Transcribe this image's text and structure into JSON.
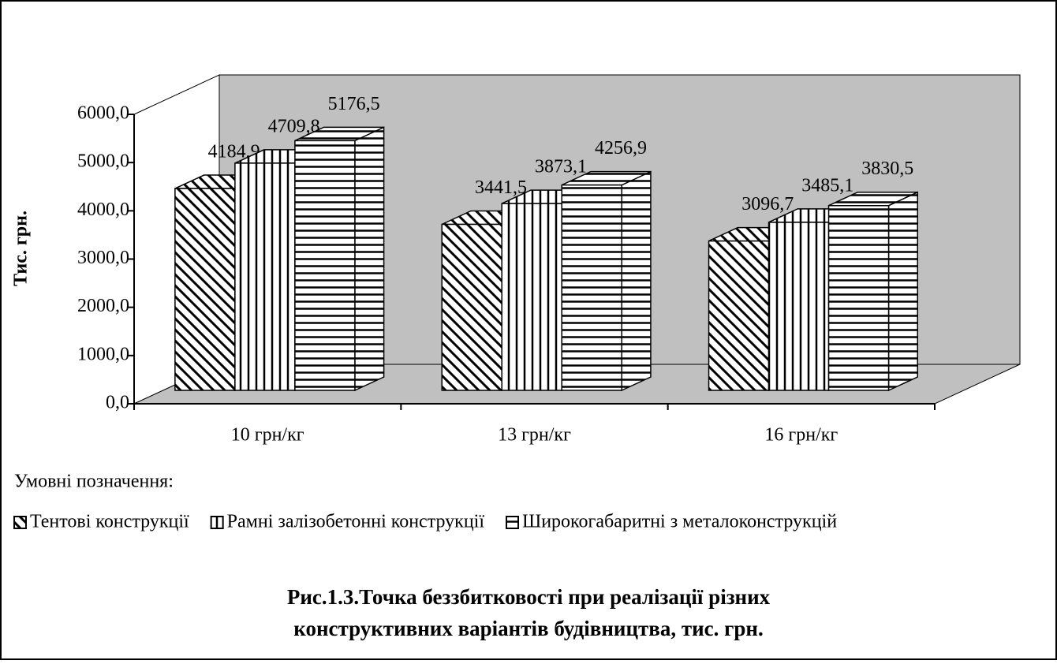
{
  "chart_data": {
    "type": "bar3d",
    "title": [
      "Рис.1.3.Точка беззбитковості при реалізації різних",
      "конструктивних варіантів будівництва, тис. грн."
    ],
    "y_label": "Тис. грн.",
    "legend_title": "Умовні позначення:",
    "categories": [
      "10 грн/кг",
      "13 грн/кг",
      "16 грн/кг"
    ],
    "series": [
      {
        "name": "Тентові конструкції",
        "color": "#ffffff",
        "pattern": "diagonal",
        "values": [
          4184.9,
          3441.5,
          3096.7
        ],
        "value_labels": [
          "4184,9",
          "3441,5",
          "3096,7"
        ]
      },
      {
        "name": "Рамні залізобетонні конструкції",
        "color": "#ffffff",
        "pattern": "vertical",
        "values": [
          4709.8,
          3873.1,
          3485.1
        ],
        "value_labels": [
          "4709,8",
          "3873,1",
          "3485,1"
        ]
      },
      {
        "name": "Широкогабаритні з металоконструкцій",
        "color": "#ffffff",
        "pattern": "horizontal",
        "values": [
          5176.5,
          4256.9,
          3830.5
        ],
        "value_labels": [
          "5176,5",
          "4256,9",
          "3830,5"
        ]
      }
    ],
    "ylim": [
      0,
      6000
    ],
    "yticks": [
      {
        "value": 0,
        "label": "0,0"
      },
      {
        "value": 1000,
        "label": "1000,0"
      },
      {
        "value": 2000,
        "label": "2000,0"
      },
      {
        "value": 3000,
        "label": "3000,0"
      },
      {
        "value": 4000,
        "label": "4000,0"
      },
      {
        "value": 5000,
        "label": "5000,0"
      },
      {
        "value": 6000,
        "label": "6000,0"
      }
    ],
    "wall_color": "#c0c0c0"
  }
}
